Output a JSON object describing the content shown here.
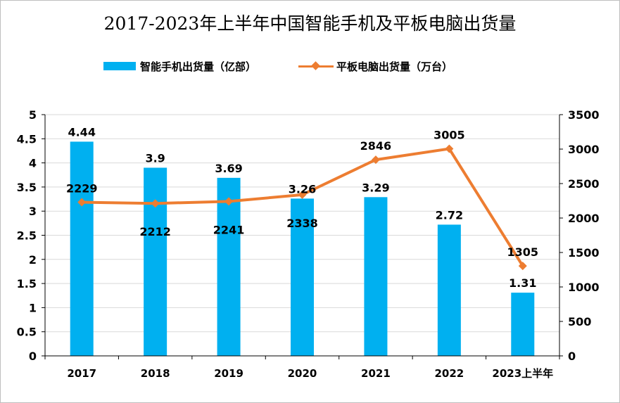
{
  "chart_data": {
    "type": "bar",
    "title": "2017-2023年上半年中国智能手机及平板电脑出货量",
    "categories": [
      "2017",
      "2018",
      "2019",
      "2020",
      "2021",
      "2022",
      "2023上半年"
    ],
    "series": [
      {
        "name": "智能手机出货量（亿部）",
        "type": "bar",
        "axis": "left",
        "values": [
          4.44,
          3.9,
          3.69,
          3.26,
          3.29,
          2.72,
          1.31
        ],
        "labels": [
          "4.44",
          "3.9",
          "3.69",
          "3.26",
          "3.29",
          "2.72",
          "1.31"
        ],
        "color": "#00b0f0"
      },
      {
        "name": "平板电脑出货量（万台）",
        "type": "line",
        "axis": "right",
        "values": [
          2229,
          2212,
          2241,
          2338,
          2846,
          3005,
          1305
        ],
        "labels": [
          "2229",
          "2212",
          "2241",
          "2338",
          "2846",
          "3005",
          "1305"
        ],
        "color": "#ed7d31"
      }
    ],
    "y_left": {
      "min": 0,
      "max": 5,
      "ticks": [
        "0",
        "0.5",
        "1",
        "1.5",
        "2",
        "2.5",
        "3",
        "3.5",
        "4",
        "4.5",
        "5"
      ]
    },
    "y_right": {
      "min": 0,
      "max": 3500,
      "ticks": [
        "0",
        "500",
        "1000",
        "1500",
        "2000",
        "2500",
        "3000",
        "3500"
      ]
    },
    "grid": true,
    "legend_position": "top"
  }
}
